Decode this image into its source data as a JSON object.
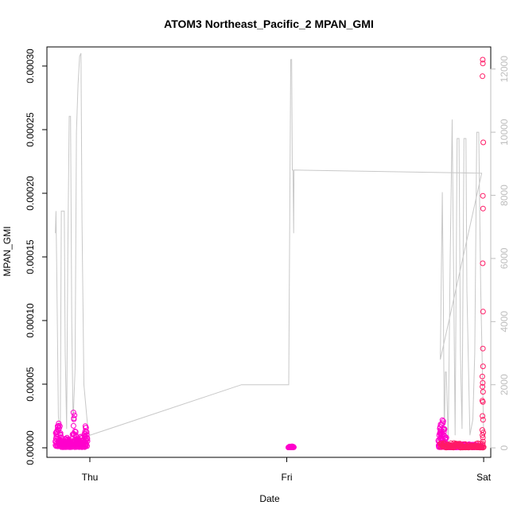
{
  "chart_data": {
    "type": "scatter",
    "title": "ATOM3 Northeast_Pacific_2 MPAN_GMI",
    "xlabel": "Date",
    "ylabel": "MPAN_GMI",
    "x_ticks": [
      {
        "label": "Thu",
        "day": 0
      },
      {
        "label": "Fri",
        "day": 1
      },
      {
        "label": "Sat",
        "day": 2
      }
    ],
    "xlim": [
      -0.218,
      2.036
    ],
    "ylim": [
      -7.5e-06,
      0.000315
    ],
    "y_ticks": [
      "0.00000",
      "0.00005",
      "0.00010",
      "0.00015",
      "0.00020",
      "0.00025",
      "0.00030"
    ],
    "y_tick_values": [
      0,
      5e-05,
      0.0001,
      0.00015,
      0.0002,
      0.00025,
      0.0003
    ],
    "y2lim": [
      -300,
      12700
    ],
    "y2_ticks": [
      "0",
      "2000",
      "4000",
      "6000",
      "8000",
      "10000",
      "12000"
    ],
    "y2_tick_values": [
      0,
      2000,
      4000,
      6000,
      8000,
      10000,
      12000
    ],
    "altitude_series": {
      "color": "#c8c8c8",
      "points": [
        [
          -0.175,
          6800
        ],
        [
          -0.172,
          7500
        ],
        [
          -0.168,
          5500
        ],
        [
          -0.16,
          1000
        ],
        [
          -0.15,
          400
        ],
        [
          -0.145,
          7500
        ],
        [
          -0.13,
          7500
        ],
        [
          -0.125,
          3000
        ],
        [
          -0.118,
          600
        ],
        [
          -0.112,
          6000
        ],
        [
          -0.105,
          10500
        ],
        [
          -0.098,
          10500
        ],
        [
          -0.092,
          4000
        ],
        [
          -0.085,
          800
        ],
        [
          -0.075,
          2500
        ],
        [
          -0.068,
          10000
        ],
        [
          -0.06,
          11500
        ],
        [
          -0.052,
          12400
        ],
        [
          -0.045,
          12500
        ],
        [
          -0.04,
          7200
        ],
        [
          -0.03,
          2000
        ],
        [
          -0.01,
          600
        ],
        [
          0.0,
          400
        ],
        [
          0.77,
          2000
        ],
        [
          1.01,
          2000
        ],
        [
          1.02,
          12300
        ],
        [
          1.025,
          12300
        ],
        [
          1.028,
          8800
        ],
        [
          1.032,
          8800
        ],
        [
          1.035,
          6800
        ],
        [
          1.037,
          8800
        ],
        [
          1.99,
          8700
        ],
        [
          1.78,
          2800
        ],
        [
          1.79,
          8100
        ],
        [
          1.795,
          5000
        ],
        [
          1.8,
          300
        ],
        [
          1.805,
          2400
        ],
        [
          1.81,
          2400
        ],
        [
          1.82,
          200
        ],
        [
          1.83,
          6000
        ],
        [
          1.84,
          10400
        ],
        [
          1.848,
          5000
        ],
        [
          1.855,
          400
        ],
        [
          1.865,
          9800
        ],
        [
          1.875,
          9800
        ],
        [
          1.882,
          3000
        ],
        [
          1.89,
          600
        ],
        [
          1.9,
          9800
        ],
        [
          1.91,
          9800
        ],
        [
          1.915,
          5000
        ],
        [
          1.93,
          400
        ],
        [
          1.945,
          900
        ],
        [
          1.955,
          3000
        ],
        [
          1.965,
          10000
        ],
        [
          1.975,
          10000
        ],
        [
          1.985,
          5000
        ],
        [
          2.0,
          400
        ]
      ]
    },
    "observed_series": {
      "color": "#ff00cc",
      "clusters": [
        {
          "x": [
            -0.175,
            -0.145
          ],
          "y": [
            5e-07,
            2.2e-05
          ]
        },
        {
          "x": [
            -0.145,
            -0.09
          ],
          "y": [
            5e-07,
            8e-06
          ]
        },
        {
          "x": [
            -0.09,
            -0.07
          ],
          "y": [
            5e-07,
            3.2e-05
          ]
        },
        {
          "x": [
            -0.07,
            -0.03
          ],
          "y": [
            5e-07,
            1e-05
          ]
        },
        {
          "x": [
            -0.03,
            -0.012
          ],
          "y": [
            5e-07,
            1.9e-05
          ]
        },
        {
          "x": [
            1.008,
            1.036
          ],
          "y": [
            3e-07,
            1.3e-06
          ]
        },
        {
          "x": [
            1.77,
            1.812
          ],
          "y": [
            5e-07,
            2.2e-05
          ]
        },
        {
          "x": [
            1.812,
            1.99
          ],
          "y": [
            3e-07,
            3e-06
          ]
        }
      ]
    },
    "model_series": {
      "color": "#ff1a66",
      "points": [
        [
          1.995,
          0.000305
        ],
        [
          1.996,
          0.000302
        ],
        [
          1.994,
          0.000292
        ],
        [
          1.998,
          0.00024
        ],
        [
          1.996,
          0.000198
        ],
        [
          1.997,
          0.000188
        ],
        [
          1.995,
          0.000145
        ],
        [
          1.997,
          0.000107
        ],
        [
          1.996,
          7.8e-05
        ],
        [
          1.997,
          6.4e-05
        ],
        [
          1.993,
          5.6e-05
        ],
        [
          1.995,
          5.1e-05
        ],
        [
          1.994,
          4.8e-05
        ],
        [
          1.997,
          4.4e-05
        ],
        [
          1.993,
          3.7e-05
        ],
        [
          1.996,
          3.6e-05
        ],
        [
          1.994,
          2.5e-05
        ],
        [
          1.997,
          2.2e-05
        ],
        [
          1.993,
          1.4e-05
        ],
        [
          1.998,
          1.2e-05
        ],
        [
          1.994,
          1e-05
        ],
        [
          1.996,
          8e-06
        ],
        [
          1.997,
          5e-06
        ],
        [
          1.995,
          2e-06
        ]
      ],
      "low_band": {
        "x": [
          1.78,
          2.0
        ],
        "y": [
          2e-07,
          4e-06
        ]
      }
    }
  }
}
